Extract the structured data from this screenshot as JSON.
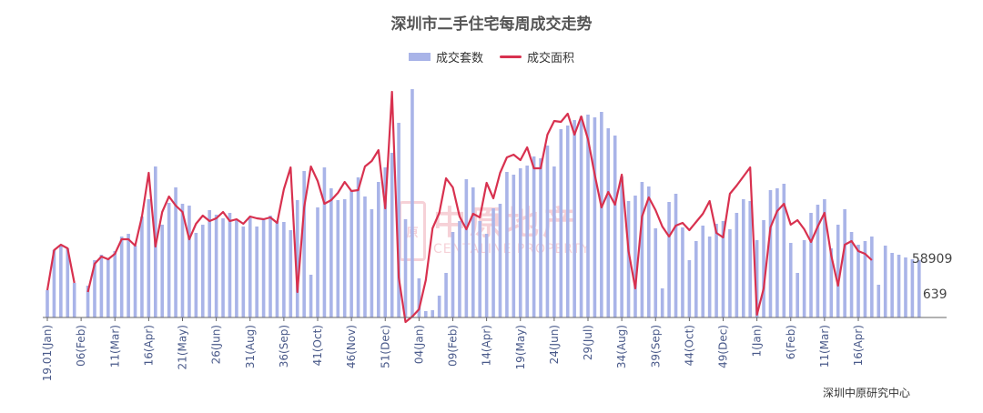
{
  "chart_data": {
    "type": "bar+line",
    "title": "深圳市二手住宅每周成交走势",
    "legend": [
      "成交套数",
      "成交面积"
    ],
    "legend_position": "top-center",
    "grid": false,
    "y_axis_visible": false,
    "x_tick_labels": [
      "19.01(Jan)",
      "06(Feb)",
      "11(Mar)",
      "16(Apr)",
      "21(May)",
      "26(Jun)",
      "31(Aug)",
      "36(Sep)",
      "41(Oct)",
      "46(Nov)",
      "51(Dec)",
      "04(Jan)",
      "09(Feb)",
      "14(Apr)",
      "19(May)",
      "24(Jun)",
      "29(Jul)",
      "34(Aug)",
      "39(Sep)",
      "44(Oct)",
      "49(Dec)",
      "1(Jan)",
      "6(Feb)",
      "11(Mar)",
      "16(Apr)"
    ],
    "annotations": [
      "58909",
      "639"
    ],
    "series": [
      {
        "name": "成交套数",
        "type": "bar",
        "color": "#a9b4e8",
        "values": [
          30,
          74,
          80,
          76,
          38,
          0,
          35,
          63,
          69,
          64,
          73,
          89,
          92,
          79,
          111,
          130,
          166,
          102,
          126,
          143,
          125,
          123,
          93,
          102,
          118,
          113,
          109,
          115,
          107,
          100,
          111,
          100,
          108,
          112,
          106,
          105,
          96,
          129,
          161,
          47,
          121,
          165,
          142,
          129,
          130,
          140,
          154,
          133,
          119,
          149,
          165,
          181,
          214,
          108,
          251,
          43,
          7,
          8,
          24,
          49,
          94,
          106,
          152,
          143,
          106,
          92,
          120,
          125,
          160,
          157,
          164,
          167,
          177,
          175,
          189,
          166,
          207,
          211,
          217,
          221,
          223,
          220,
          226,
          208,
          200,
          155,
          128,
          134,
          149,
          144,
          98,
          32,
          127,
          136,
          99,
          63,
          84,
          101,
          89,
          103,
          106,
          97,
          115,
          130,
          128,
          85,
          107,
          140,
          142,
          147,
          82,
          49,
          85,
          115,
          124,
          130,
          76,
          102,
          119,
          94,
          80,
          84,
          89,
          36,
          79,
          71,
          69,
          66,
          64,
          63
        ]
      },
      {
        "name": "成交面积",
        "type": "line",
        "color": "#d8314f",
        "values": [
          30,
          74,
          80,
          76,
          38,
          null,
          28,
          59,
          67,
          64,
          70,
          86,
          86,
          79,
          111,
          159,
          78,
          116,
          133,
          123,
          116,
          86,
          103,
          112,
          106,
          109,
          116,
          106,
          108,
          103,
          111,
          109,
          108,
          110,
          104,
          141,
          165,
          28,
          121,
          166,
          150,
          125,
          129,
          137,
          149,
          139,
          140,
          166,
          172,
          184,
          120,
          248,
          44,
          -5,
          1,
          9,
          41,
          98,
          115,
          153,
          143,
          111,
          97,
          114,
          110,
          148,
          131,
          159,
          176,
          179,
          173,
          187,
          164,
          164,
          201,
          216,
          215,
          224,
          201,
          221,
          196,
          157,
          121,
          138,
          124,
          157,
          73,
          32,
          111,
          132,
          118,
          100,
          89,
          101,
          104,
          96,
          105,
          114,
          128,
          93,
          88,
          136,
          145,
          155,
          165,
          3,
          32,
          99,
          117,
          125,
          102,
          107,
          97,
          83,
          100,
          115,
          68,
          35,
          80,
          84,
          73,
          70,
          63
        ]
      }
    ]
  },
  "source": "深圳中原研究中心",
  "watermark": {
    "cn": "中原地产",
    "en": "CENTALINE PROPERTY"
  }
}
